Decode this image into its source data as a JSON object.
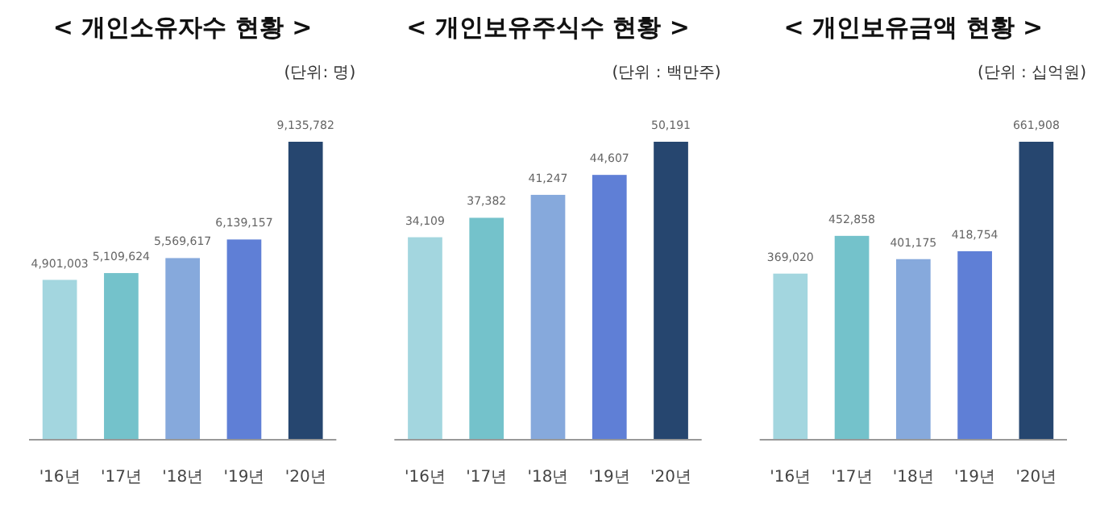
{
  "chart_data": [
    {
      "type": "bar",
      "title": "< 개인소유자수 현황 >",
      "subtitle": "(단위: 명)",
      "categories": [
        "'16년",
        "'17년",
        "'18년",
        "'19년",
        "'20년"
      ],
      "values": [
        4901003,
        5109624,
        5569617,
        6139157,
        9135782
      ],
      "value_labels": [
        "4,901,003",
        "5,109,624",
        "5,569,617",
        "6,139,157",
        "9,135,782"
      ],
      "colors": [
        "#a3d6df",
        "#74c2cb",
        "#86a9dc",
        "#5f7fd6",
        "#26466f"
      ]
    },
    {
      "type": "bar",
      "title": "< 개인보유주식수 현황 >",
      "subtitle": "(단위 : 백만주)",
      "categories": [
        "'16년",
        "'17년",
        "'18년",
        "'19년",
        "'20년"
      ],
      "values": [
        34109,
        37382,
        41247,
        44607,
        50191
      ],
      "value_labels": [
        "34,109",
        "37,382",
        "41,247",
        "44,607",
        "50,191"
      ],
      "colors": [
        "#a3d6df",
        "#74c2cb",
        "#86a9dc",
        "#5f7fd6",
        "#26466f"
      ]
    },
    {
      "type": "bar",
      "title": "< 개인보유금액 현황 >",
      "subtitle": "(단위 : 십억원)",
      "categories": [
        "'16년",
        "'17년",
        "'18년",
        "'19년",
        "'20년"
      ],
      "values": [
        369020,
        452858,
        401175,
        418754,
        661908
      ],
      "value_labels": [
        "369,020",
        "452,858",
        "401,175",
        "418,754",
        "661,908"
      ],
      "colors": [
        "#a3d6df",
        "#74c2cb",
        "#86a9dc",
        "#5f7fd6",
        "#26466f"
      ]
    }
  ]
}
